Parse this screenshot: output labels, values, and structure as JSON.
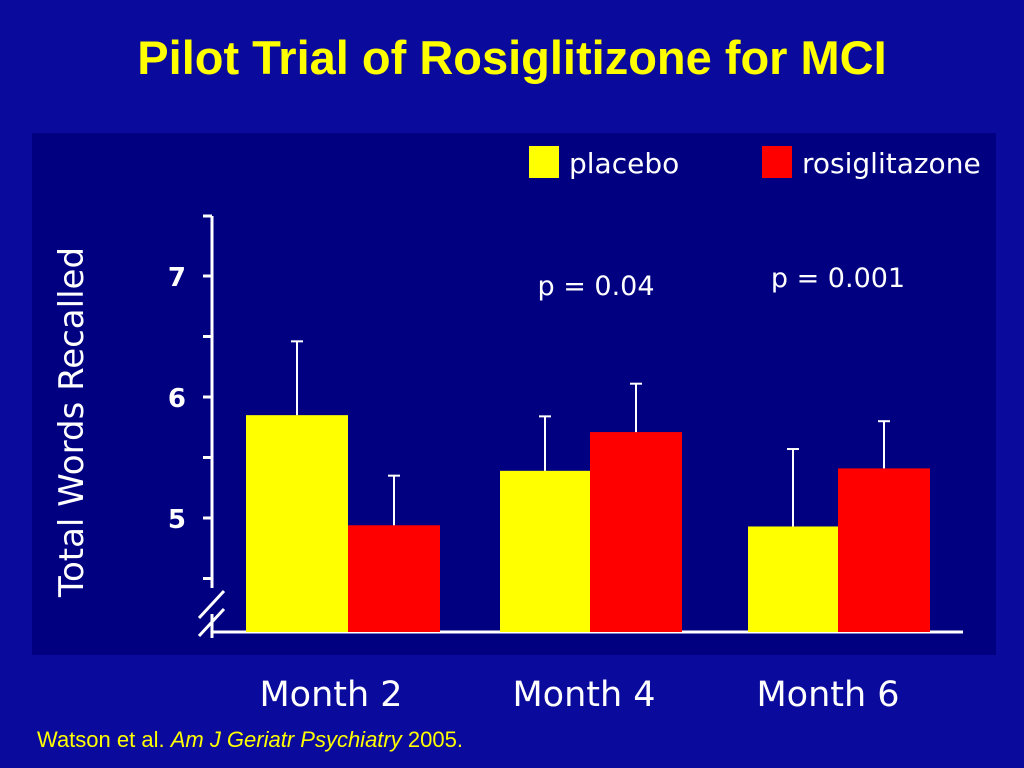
{
  "slide": {
    "title": "Pilot Trial of Rosiglitizone for MCI",
    "citation": {
      "authors": "Watson et al.",
      "journal": "Am J Geriatr Psychiatry",
      "year": "2005."
    }
  },
  "colors": {
    "background": "#0A0A9C",
    "plot_background": "#000080",
    "title": "#FFFF00",
    "placebo": "#FFFF00",
    "rosiglitazone": "#FF0000",
    "axis_text": "#FFFFFF"
  },
  "chart_data": {
    "type": "bar",
    "title": "",
    "xlabel": "",
    "ylabel": "Total Words Recalled",
    "ylim": [
      4.5,
      7.5
    ],
    "y_ticks": [
      "5",
      "6",
      "7"
    ],
    "axis_break": true,
    "grid": false,
    "legend_position": "top-right",
    "categories": [
      "Month 2",
      "Month 4",
      "Month 6"
    ],
    "series": [
      {
        "name": "placebo",
        "color": "#FFFF00",
        "values": [
          5.85,
          5.39,
          4.93
        ],
        "error": [
          0.61,
          0.45,
          0.64
        ]
      },
      {
        "name": "rosiglitazone",
        "color": "#FF0000",
        "values": [
          4.94,
          5.71,
          5.41
        ],
        "error": [
          0.41,
          0.4,
          0.39
        ]
      }
    ],
    "annotations": [
      {
        "category": "Month 4",
        "text": "p = 0.04"
      },
      {
        "category": "Month 6",
        "text": "p = 0.001"
      }
    ]
  }
}
